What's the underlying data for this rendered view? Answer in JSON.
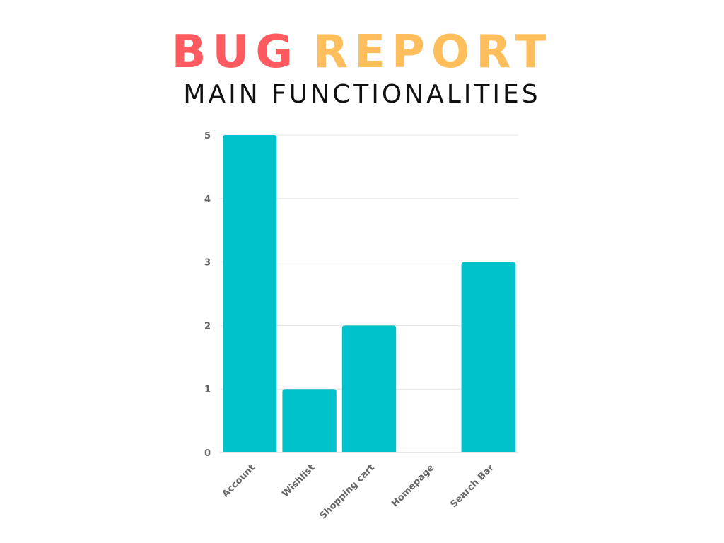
{
  "header": {
    "title_part1": "BUG",
    "title_part2": "REPORT",
    "subtitle": "MAIN FUNCTIONALITIES"
  },
  "colors": {
    "title_part1": "#ff5a5f",
    "title_part2": "#ffbe5c",
    "bar": "#00c2cb",
    "grid": "#e6e6e6",
    "axis": "#cccccc",
    "label": "#666666"
  },
  "chart_data": {
    "type": "bar",
    "title": "BUG REPORT",
    "subtitle": "MAIN FUNCTIONALITIES",
    "categories": [
      "Account",
      "Wishlist",
      "Shopping cart",
      "Homepage",
      "Search Bar"
    ],
    "values": [
      5,
      1,
      2,
      0,
      3
    ],
    "y_ticks": [
      0,
      1,
      2,
      3,
      4,
      5
    ],
    "ylim": [
      0,
      5
    ],
    "xlabel": "",
    "ylabel": "",
    "grid": true,
    "legend": "none"
  }
}
